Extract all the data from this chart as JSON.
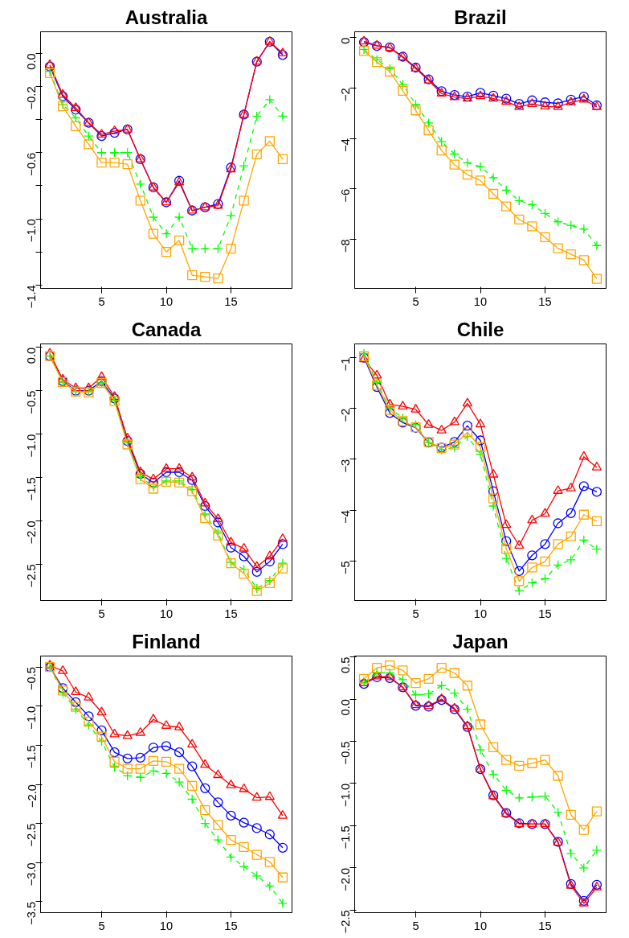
{
  "chart_data": [
    {
      "type": "line",
      "title": "Australia",
      "x": [
        1,
        2,
        3,
        4,
        5,
        6,
        7,
        8,
        9,
        10,
        11,
        12,
        13,
        14,
        15,
        16,
        17,
        18,
        19
      ],
      "xlim": [
        0.28,
        19.72
      ],
      "xticks": [
        5,
        10,
        15
      ],
      "ylim": [
        -1.42,
        0.13
      ],
      "yticks": [
        {
          "value": 0,
          "label": "0.0"
        },
        {
          "value": -0.2,
          "label": "−0.2"
        },
        {
          "value": -0.4,
          "label": null
        },
        {
          "value": -0.6,
          "label": "−0.6"
        },
        {
          "value": -0.8,
          "label": null
        },
        {
          "value": -1.0,
          "label": "−1.0"
        },
        {
          "value": -1.2,
          "label": null
        },
        {
          "value": -1.4,
          "label": "−1.4"
        }
      ],
      "series": [
        {
          "color": "#0000ff",
          "marker": "circle",
          "line_style": "solid",
          "values": [
            -0.08,
            -0.26,
            -0.34,
            -0.42,
            -0.5,
            -0.48,
            -0.46,
            -0.64,
            -0.81,
            -0.9,
            -0.77,
            -0.95,
            -0.93,
            -0.91,
            -0.69,
            -0.37,
            -0.05,
            0.07,
            -0.01
          ]
        },
        {
          "color": "#ff0000",
          "marker": "triangle",
          "line_style": "solid",
          "values": [
            -0.07,
            -0.25,
            -0.33,
            -0.42,
            -0.49,
            -0.47,
            -0.46,
            -0.64,
            -0.81,
            -0.9,
            -0.78,
            -0.95,
            -0.93,
            -0.92,
            -0.7,
            -0.37,
            -0.05,
            0.07,
            0.0
          ]
        },
        {
          "color": "#00ff00",
          "marker": "cross",
          "line_style": "dashed",
          "values": [
            -0.11,
            -0.31,
            -0.39,
            -0.5,
            -0.6,
            -0.6,
            -0.6,
            -0.79,
            -0.99,
            -1.09,
            -0.99,
            -1.18,
            -1.18,
            -1.18,
            -0.98,
            -0.68,
            -0.38,
            -0.28,
            -0.38
          ]
        },
        {
          "color": "#ffa500",
          "marker": "square",
          "line_style": "solid",
          "values": [
            -0.12,
            -0.32,
            -0.44,
            -0.55,
            -0.66,
            -0.66,
            -0.67,
            -0.89,
            -1.09,
            -1.2,
            -1.13,
            -1.34,
            -1.35,
            -1.36,
            -1.18,
            -0.89,
            -0.61,
            -0.53,
            -0.64
          ]
        }
      ]
    },
    {
      "type": "line",
      "title": "Brazil",
      "x": [
        1,
        2,
        3,
        4,
        5,
        6,
        7,
        8,
        9,
        10,
        11,
        12,
        13,
        14,
        15,
        16,
        17,
        18,
        19
      ],
      "xlim": [
        0.28,
        19.72
      ],
      "xticks": [
        5,
        10,
        15
      ],
      "ylim": [
        -9.95,
        0.23
      ],
      "yticks": [
        0,
        {
          "value": -2,
          "label": "−2"
        },
        {
          "value": -4,
          "label": "−4"
        },
        {
          "value": -6,
          "label": "−6"
        },
        {
          "value": -8,
          "label": "−8"
        }
      ],
      "series": [
        {
          "color": "#0000ff",
          "marker": "circle",
          "line_style": "solid",
          "values": [
            -0.18,
            -0.33,
            -0.39,
            -0.76,
            -1.19,
            -1.66,
            -2.13,
            -2.28,
            -2.34,
            -2.19,
            -2.3,
            -2.42,
            -2.63,
            -2.49,
            -2.57,
            -2.61,
            -2.46,
            -2.34,
            -2.69
          ]
        },
        {
          "color": "#ff0000",
          "marker": "triangle",
          "line_style": "solid",
          "values": [
            -0.15,
            -0.32,
            -0.41,
            -0.78,
            -1.23,
            -1.7,
            -2.22,
            -2.36,
            -2.42,
            -2.32,
            -2.42,
            -2.54,
            -2.75,
            -2.63,
            -2.73,
            -2.75,
            -2.57,
            -2.46,
            -2.75
          ]
        },
        {
          "color": "#00ff00",
          "marker": "cross",
          "line_style": "dashed",
          "values": [
            -0.47,
            -0.88,
            -1.23,
            -1.87,
            -2.65,
            -3.39,
            -4.13,
            -4.62,
            -4.97,
            -5.12,
            -5.56,
            -6.05,
            -6.47,
            -6.63,
            -6.98,
            -7.31,
            -7.45,
            -7.6,
            -8.25
          ]
        },
        {
          "color": "#ffa500",
          "marker": "square",
          "line_style": "solid",
          "values": [
            -0.53,
            -0.97,
            -1.35,
            -2.11,
            -2.89,
            -3.68,
            -4.48,
            -5.04,
            -5.44,
            -5.67,
            -6.2,
            -6.7,
            -7.22,
            -7.49,
            -7.92,
            -8.36,
            -8.6,
            -8.83,
            -9.57
          ]
        }
      ]
    },
    {
      "type": "line",
      "title": "Canada",
      "x": [
        1,
        2,
        3,
        4,
        5,
        6,
        7,
        8,
        9,
        10,
        11,
        12,
        13,
        14,
        15,
        16,
        17,
        18,
        19
      ],
      "xlim": [
        0.28,
        19.72
      ],
      "xticks": [
        5,
        10,
        15
      ],
      "ylim": [
        -2.92,
        0.04
      ],
      "yticks": [
        {
          "value": 0,
          "label": "0.0"
        },
        {
          "value": -0.5,
          "label": "−0.5"
        },
        {
          "value": -1.0,
          "label": "−1.0"
        },
        {
          "value": -1.5,
          "label": "−1.5"
        },
        {
          "value": -2.0,
          "label": "−2.0"
        },
        {
          "value": -2.5,
          "label": "−2.5"
        }
      ],
      "series": [
        {
          "color": "#0000ff",
          "marker": "circle",
          "line_style": "solid",
          "values": [
            -0.1,
            -0.39,
            -0.5,
            -0.5,
            -0.39,
            -0.59,
            -1.08,
            -1.46,
            -1.56,
            -1.44,
            -1.44,
            -1.53,
            -1.83,
            -2.02,
            -2.31,
            -2.41,
            -2.59,
            -2.47,
            -2.27
          ]
        },
        {
          "color": "#ff0000",
          "marker": "triangle",
          "line_style": "solid",
          "values": [
            -0.07,
            -0.37,
            -0.47,
            -0.47,
            -0.34,
            -0.57,
            -1.05,
            -1.44,
            -1.52,
            -1.4,
            -1.4,
            -1.5,
            -1.8,
            -1.98,
            -2.25,
            -2.32,
            -2.53,
            -2.41,
            -2.21
          ]
        },
        {
          "color": "#00ff00",
          "marker": "cross",
          "line_style": "dashed",
          "values": [
            -0.1,
            -0.4,
            -0.51,
            -0.51,
            -0.41,
            -0.61,
            -1.1,
            -1.49,
            -1.61,
            -1.54,
            -1.54,
            -1.64,
            -1.93,
            -2.14,
            -2.48,
            -2.56,
            -2.78,
            -2.69,
            -2.49
          ]
        },
        {
          "color": "#ffa500",
          "marker": "square",
          "line_style": "solid",
          "values": [
            -0.1,
            -0.4,
            -0.51,
            -0.52,
            -0.41,
            -0.62,
            -1.12,
            -1.52,
            -1.63,
            -1.55,
            -1.56,
            -1.66,
            -1.97,
            -2.17,
            -2.49,
            -2.61,
            -2.81,
            -2.72,
            -2.55
          ]
        }
      ]
    },
    {
      "type": "line",
      "title": "Chile",
      "x": [
        1,
        2,
        3,
        4,
        5,
        6,
        7,
        8,
        9,
        10,
        11,
        12,
        13,
        14,
        15,
        16,
        17,
        18,
        19
      ],
      "xlim": [
        0.28,
        19.72
      ],
      "xticks": [
        5,
        10,
        15
      ],
      "ylim": [
        -5.78,
        -0.73
      ],
      "yticks": [
        {
          "value": -1,
          "label": "−1"
        },
        {
          "value": -2,
          "label": "−2"
        },
        {
          "value": -3,
          "label": "−3"
        },
        {
          "value": -4,
          "label": "−4"
        },
        {
          "value": -5,
          "label": "−5"
        }
      ],
      "series": [
        {
          "color": "#0000ff",
          "marker": "circle",
          "line_style": "solid",
          "values": [
            -1.0,
            -1.58,
            -2.09,
            -2.28,
            -2.38,
            -2.67,
            -2.77,
            -2.66,
            -2.34,
            -2.63,
            -3.63,
            -4.61,
            -5.2,
            -4.89,
            -4.67,
            -4.26,
            -4.06,
            -3.53,
            -3.64
          ]
        },
        {
          "color": "#ff0000",
          "marker": "triangle",
          "line_style": "solid",
          "values": [
            -1.03,
            -1.35,
            -1.92,
            -1.96,
            -2.02,
            -2.32,
            -2.43,
            -2.27,
            -1.9,
            -2.31,
            -3.3,
            -4.29,
            -4.7,
            -4.2,
            -4.07,
            -3.62,
            -3.57,
            -2.95,
            -3.16
          ]
        },
        {
          "color": "#00ff00",
          "marker": "cross",
          "line_style": "dashed",
          "values": [
            -0.92,
            -1.49,
            -1.99,
            -2.19,
            -2.32,
            -2.67,
            -2.81,
            -2.77,
            -2.55,
            -2.9,
            -3.92,
            -4.95,
            -5.59,
            -5.43,
            -5.35,
            -5.08,
            -4.98,
            -4.59,
            -4.77
          ]
        },
        {
          "color": "#ffa500",
          "marker": "square",
          "line_style": "solid",
          "values": [
            -0.97,
            -1.54,
            -2.03,
            -2.25,
            -2.37,
            -2.66,
            -2.78,
            -2.71,
            -2.47,
            -2.76,
            -3.77,
            -4.76,
            -5.4,
            -5.13,
            -5.01,
            -4.67,
            -4.52,
            -4.09,
            -4.22
          ]
        }
      ]
    },
    {
      "type": "line",
      "title": "Finland",
      "x": [
        1,
        2,
        3,
        4,
        5,
        6,
        7,
        8,
        9,
        10,
        11,
        12,
        13,
        14,
        15,
        16,
        17,
        18,
        19
      ],
      "xlim": [
        0.28,
        19.72
      ],
      "xticks": [
        5,
        10,
        15
      ],
      "ylim": [
        -3.64,
        -0.36
      ],
      "yticks": [
        {
          "value": -0.5,
          "label": "−0.5"
        },
        {
          "value": -1.0,
          "label": "−1.0"
        },
        {
          "value": -1.5,
          "label": "−1.5"
        },
        {
          "value": -2.0,
          "label": "−2.0"
        },
        {
          "value": -2.5,
          "label": "−2.5"
        },
        {
          "value": -3.0,
          "label": "−3.0"
        },
        {
          "value": -3.5,
          "label": "−3.5"
        }
      ],
      "series": [
        {
          "color": "#0000ff",
          "marker": "circle",
          "line_style": "solid",
          "values": [
            -0.5,
            -0.77,
            -0.95,
            -1.13,
            -1.31,
            -1.59,
            -1.67,
            -1.66,
            -1.53,
            -1.51,
            -1.59,
            -1.77,
            -2.05,
            -2.23,
            -2.4,
            -2.49,
            -2.56,
            -2.64,
            -2.81
          ]
        },
        {
          "color": "#ff0000",
          "marker": "triangle",
          "line_style": "solid",
          "values": [
            -0.48,
            -0.55,
            -0.82,
            -0.89,
            -1.08,
            -1.36,
            -1.38,
            -1.34,
            -1.17,
            -1.25,
            -1.27,
            -1.49,
            -1.75,
            -1.88,
            -2.01,
            -2.06,
            -2.17,
            -2.16,
            -2.4
          ]
        },
        {
          "color": "#00ff00",
          "marker": "cross",
          "line_style": "dashed",
          "values": [
            -0.5,
            -0.83,
            -1.04,
            -1.24,
            -1.45,
            -1.78,
            -1.89,
            -1.91,
            -1.83,
            -1.86,
            -1.97,
            -2.19,
            -2.5,
            -2.71,
            -2.93,
            -3.05,
            -3.17,
            -3.3,
            -3.52
          ]
        },
        {
          "color": "#ffa500",
          "marker": "square",
          "line_style": "solid",
          "values": [
            -0.5,
            -0.8,
            -1.01,
            -1.2,
            -1.39,
            -1.71,
            -1.8,
            -1.8,
            -1.7,
            -1.71,
            -1.8,
            -2.02,
            -2.33,
            -2.52,
            -2.71,
            -2.8,
            -2.9,
            -2.99,
            -3.19
          ]
        }
      ]
    },
    {
      "type": "line",
      "title": "Japan",
      "x": [
        1,
        2,
        3,
        4,
        5,
        6,
        7,
        8,
        9,
        10,
        11,
        12,
        13,
        14,
        15,
        16,
        17,
        18,
        19
      ],
      "xlim": [
        0.28,
        19.72
      ],
      "xticks": [
        5,
        10,
        15
      ],
      "ylim": [
        -2.53,
        0.51
      ],
      "yticks": [
        0.5,
        {
          "value": 0,
          "label": "0.0"
        },
        {
          "value": -0.5,
          "label": "−0.5"
        },
        {
          "value": -1.0,
          "label": "−1.0"
        },
        {
          "value": -1.5,
          "label": "−1.5"
        },
        {
          "value": -2.0,
          "label": "−2.0"
        },
        {
          "value": -2.5,
          "label": "−2.5"
        }
      ],
      "series": [
        {
          "color": "#0000ff",
          "marker": "circle",
          "line_style": "solid",
          "values": [
            0.18,
            0.26,
            0.25,
            0.14,
            -0.08,
            -0.09,
            -0.01,
            -0.12,
            -0.33,
            -0.83,
            -1.14,
            -1.35,
            -1.47,
            -1.48,
            -1.48,
            -1.69,
            -2.19,
            -2.39,
            -2.2
          ]
        },
        {
          "color": "#ff0000",
          "marker": "triangle",
          "line_style": "solid",
          "values": [
            0.19,
            0.27,
            0.26,
            0.14,
            -0.07,
            -0.08,
            0.0,
            -0.11,
            -0.32,
            -0.83,
            -1.15,
            -1.36,
            -1.48,
            -1.48,
            -1.48,
            -1.7,
            -2.21,
            -2.42,
            -2.23
          ]
        },
        {
          "color": "#00ff00",
          "marker": "cross",
          "line_style": "dashed",
          "values": [
            0.2,
            0.31,
            0.31,
            0.23,
            0.05,
            0.06,
            0.16,
            0.07,
            -0.12,
            -0.6,
            -0.89,
            -1.08,
            -1.17,
            -1.16,
            -1.15,
            -1.34,
            -1.83,
            -2.0,
            -1.79
          ]
        },
        {
          "color": "#ffa500",
          "marker": "square",
          "line_style": "solid",
          "values": [
            0.24,
            0.37,
            0.4,
            0.34,
            0.19,
            0.24,
            0.37,
            0.31,
            0.16,
            -0.3,
            -0.57,
            -0.72,
            -0.79,
            -0.76,
            -0.72,
            -0.91,
            -1.37,
            -1.55,
            -1.33
          ]
        }
      ]
    }
  ]
}
